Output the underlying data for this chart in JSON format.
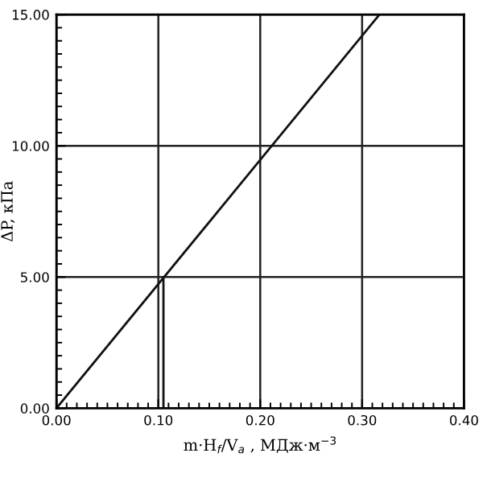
{
  "chart_data": {
    "type": "line",
    "xlabel": "m·H$_{f}$/V$_{a}$ , МДж·м$^{−3}$",
    "ylabel": "ΔP, кПа",
    "series": [
      {
        "color": "#111111",
        "x": [
          0,
          0.317
        ],
        "values": [
          0,
          15
        ]
      },
      {
        "color": "#111111",
        "x": [
          0.105,
          0.105
        ],
        "values": [
          0,
          5
        ]
      }
    ],
    "xlim": [
      0,
      0.4
    ],
    "ylim": [
      0,
      15
    ],
    "xticks": [
      {
        "value": 0,
        "label": "0.00"
      },
      {
        "value": 0.1,
        "label": "0.10"
      },
      {
        "value": 0.2,
        "label": "0.20"
      },
      {
        "value": 0.3,
        "label": "0.30"
      },
      {
        "value": 0.4,
        "label": "0.40"
      }
    ],
    "yticks": [
      {
        "value": 0,
        "label": "0.00"
      },
      {
        "value": 5,
        "label": "5.00"
      },
      {
        "value": 10,
        "label": "10.00"
      },
      {
        "value": 15,
        "label": "15.00"
      }
    ],
    "grid": true,
    "marker": "none",
    "line_style": "solid"
  }
}
